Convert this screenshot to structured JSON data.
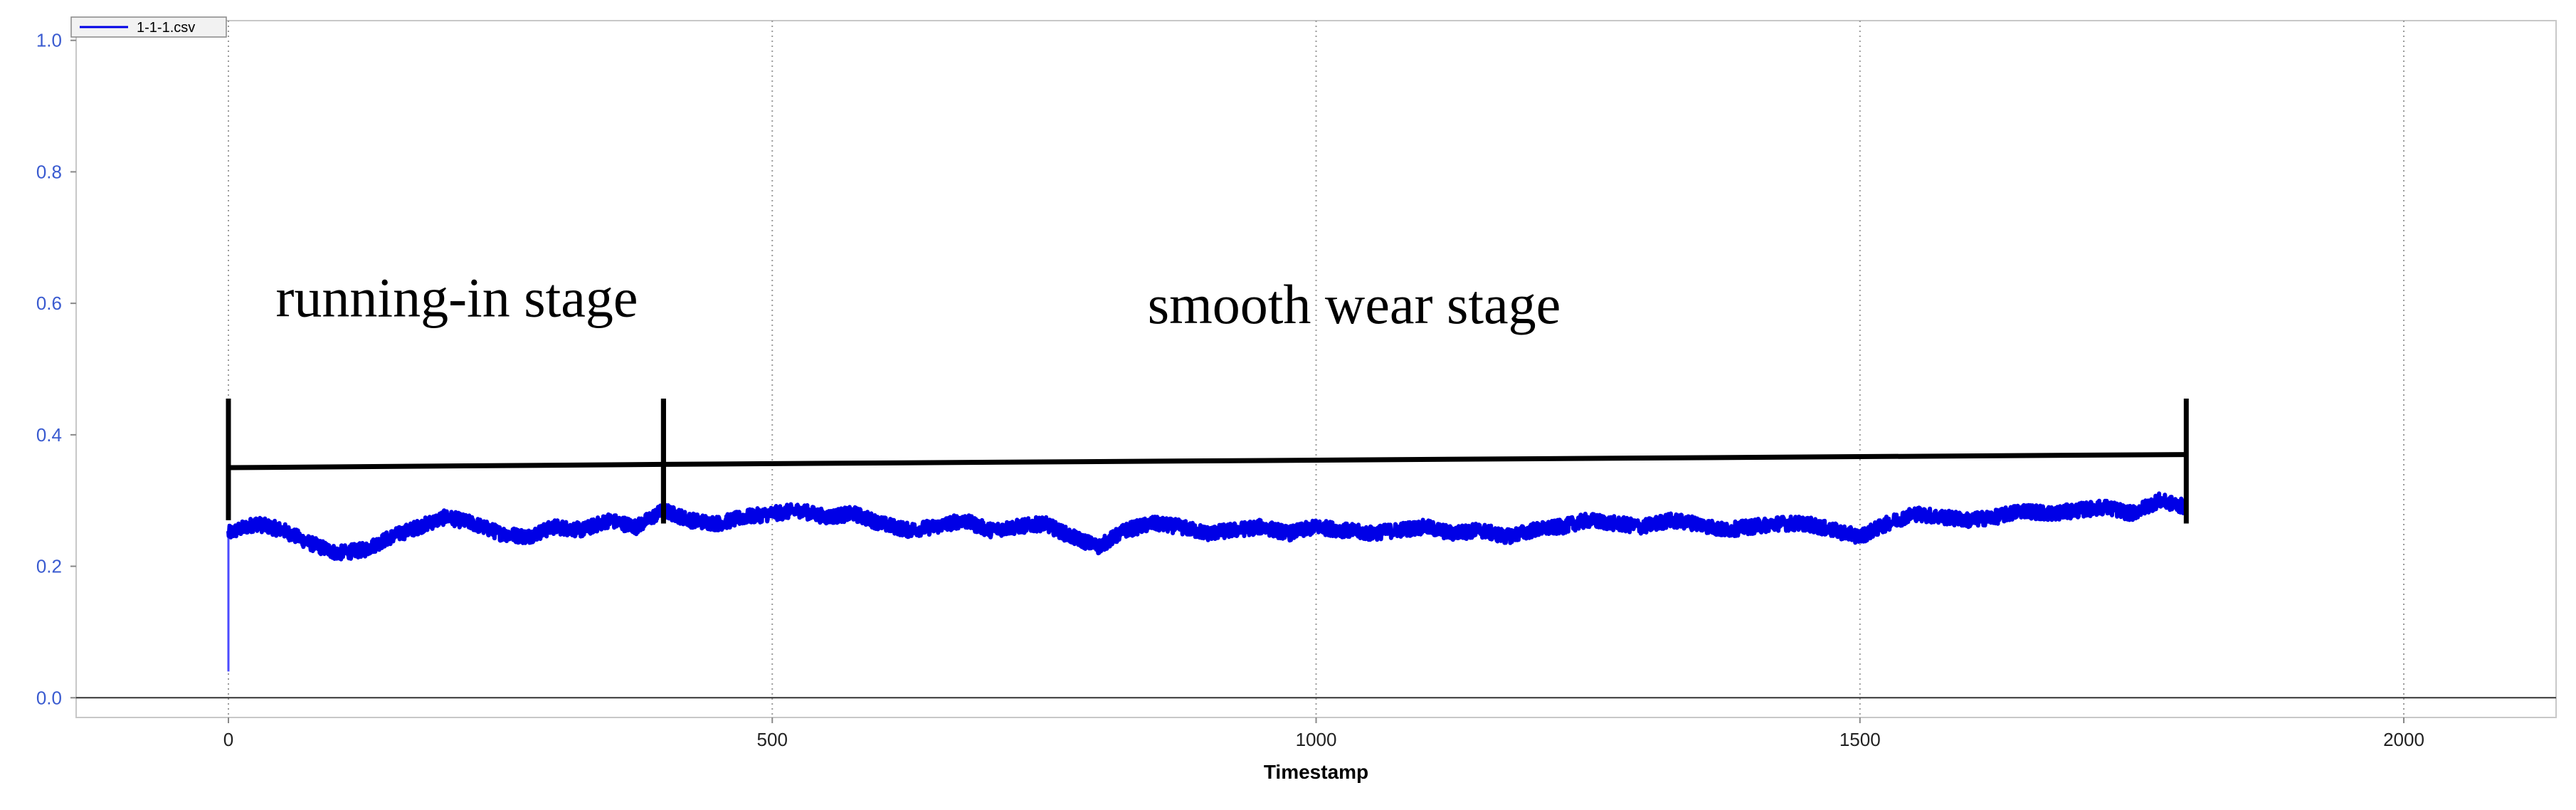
{
  "chart_data": {
    "type": "line",
    "xlabel": "Timestamp",
    "ylabel": "",
    "xlim": [
      -140,
      2140
    ],
    "ylim": [
      -0.03,
      1.03
    ],
    "x_ticks": [
      0,
      500,
      1000,
      1500,
      2000
    ],
    "y_ticks": [
      0.0,
      0.2,
      0.4,
      0.6,
      0.8,
      1.0
    ],
    "x_tick_labels": [
      "0",
      "500",
      "1000",
      "1500",
      "2000"
    ],
    "y_tick_labels": [
      "0.0",
      "0.2",
      "0.4",
      "0.6",
      "0.8",
      "1.0"
    ],
    "grid": true,
    "legend_position": "top-left",
    "series": [
      {
        "name": "1-1-1.csv",
        "color": "#0000e6",
        "initial_spike": {
          "x": 0,
          "from": 0.04,
          "to": 0.25
        },
        "x": [
          0,
          25,
          50,
          75,
          100,
          125,
          150,
          175,
          200,
          225,
          250,
          275,
          300,
          325,
          350,
          375,
          400,
          425,
          450,
          475,
          500,
          525,
          550,
          575,
          600,
          625,
          650,
          675,
          700,
          725,
          750,
          775,
          800,
          825,
          850,
          875,
          900,
          925,
          950,
          975,
          1000,
          1025,
          1050,
          1075,
          1100,
          1125,
          1150,
          1175,
          1200,
          1225,
          1250,
          1275,
          1300,
          1325,
          1350,
          1375,
          1400,
          1425,
          1450,
          1475,
          1500,
          1525,
          1550,
          1575,
          1600,
          1625,
          1650,
          1675,
          1700,
          1725,
          1750,
          1775,
          1800
        ],
        "y": [
          0.25,
          0.265,
          0.255,
          0.235,
          0.22,
          0.225,
          0.245,
          0.26,
          0.275,
          0.265,
          0.25,
          0.245,
          0.26,
          0.255,
          0.27,
          0.26,
          0.285,
          0.27,
          0.265,
          0.275,
          0.28,
          0.285,
          0.275,
          0.28,
          0.265,
          0.255,
          0.26,
          0.27,
          0.255,
          0.26,
          0.265,
          0.245,
          0.23,
          0.255,
          0.265,
          0.26,
          0.25,
          0.255,
          0.26,
          0.25,
          0.26,
          0.255,
          0.25,
          0.255,
          0.26,
          0.25,
          0.255,
          0.245,
          0.255,
          0.26,
          0.27,
          0.265,
          0.26,
          0.27,
          0.265,
          0.255,
          0.26,
          0.265,
          0.265,
          0.255,
          0.245,
          0.265,
          0.28,
          0.275,
          0.27,
          0.275,
          0.285,
          0.28,
          0.285,
          0.29,
          0.28,
          0.3,
          0.29
        ]
      }
    ],
    "annotations": {
      "running_in": {
        "label": "running-in stage",
        "x_start": 0,
        "x_end": 400,
        "y_level_start": 0.35,
        "y_level_end": 0.355,
        "tick_top": 0.455,
        "tick_bottom": 0.27,
        "label_x": 210,
        "label_y": 0.58
      },
      "smooth_wear": {
        "label": "smooth wear stage",
        "x_start": 400,
        "x_end": 1800,
        "y_level_start": 0.355,
        "y_level_end": 0.37,
        "tick_top": 0.455,
        "tick_bottom": 0.265,
        "label_x": 1035,
        "label_y": 0.57
      }
    }
  }
}
